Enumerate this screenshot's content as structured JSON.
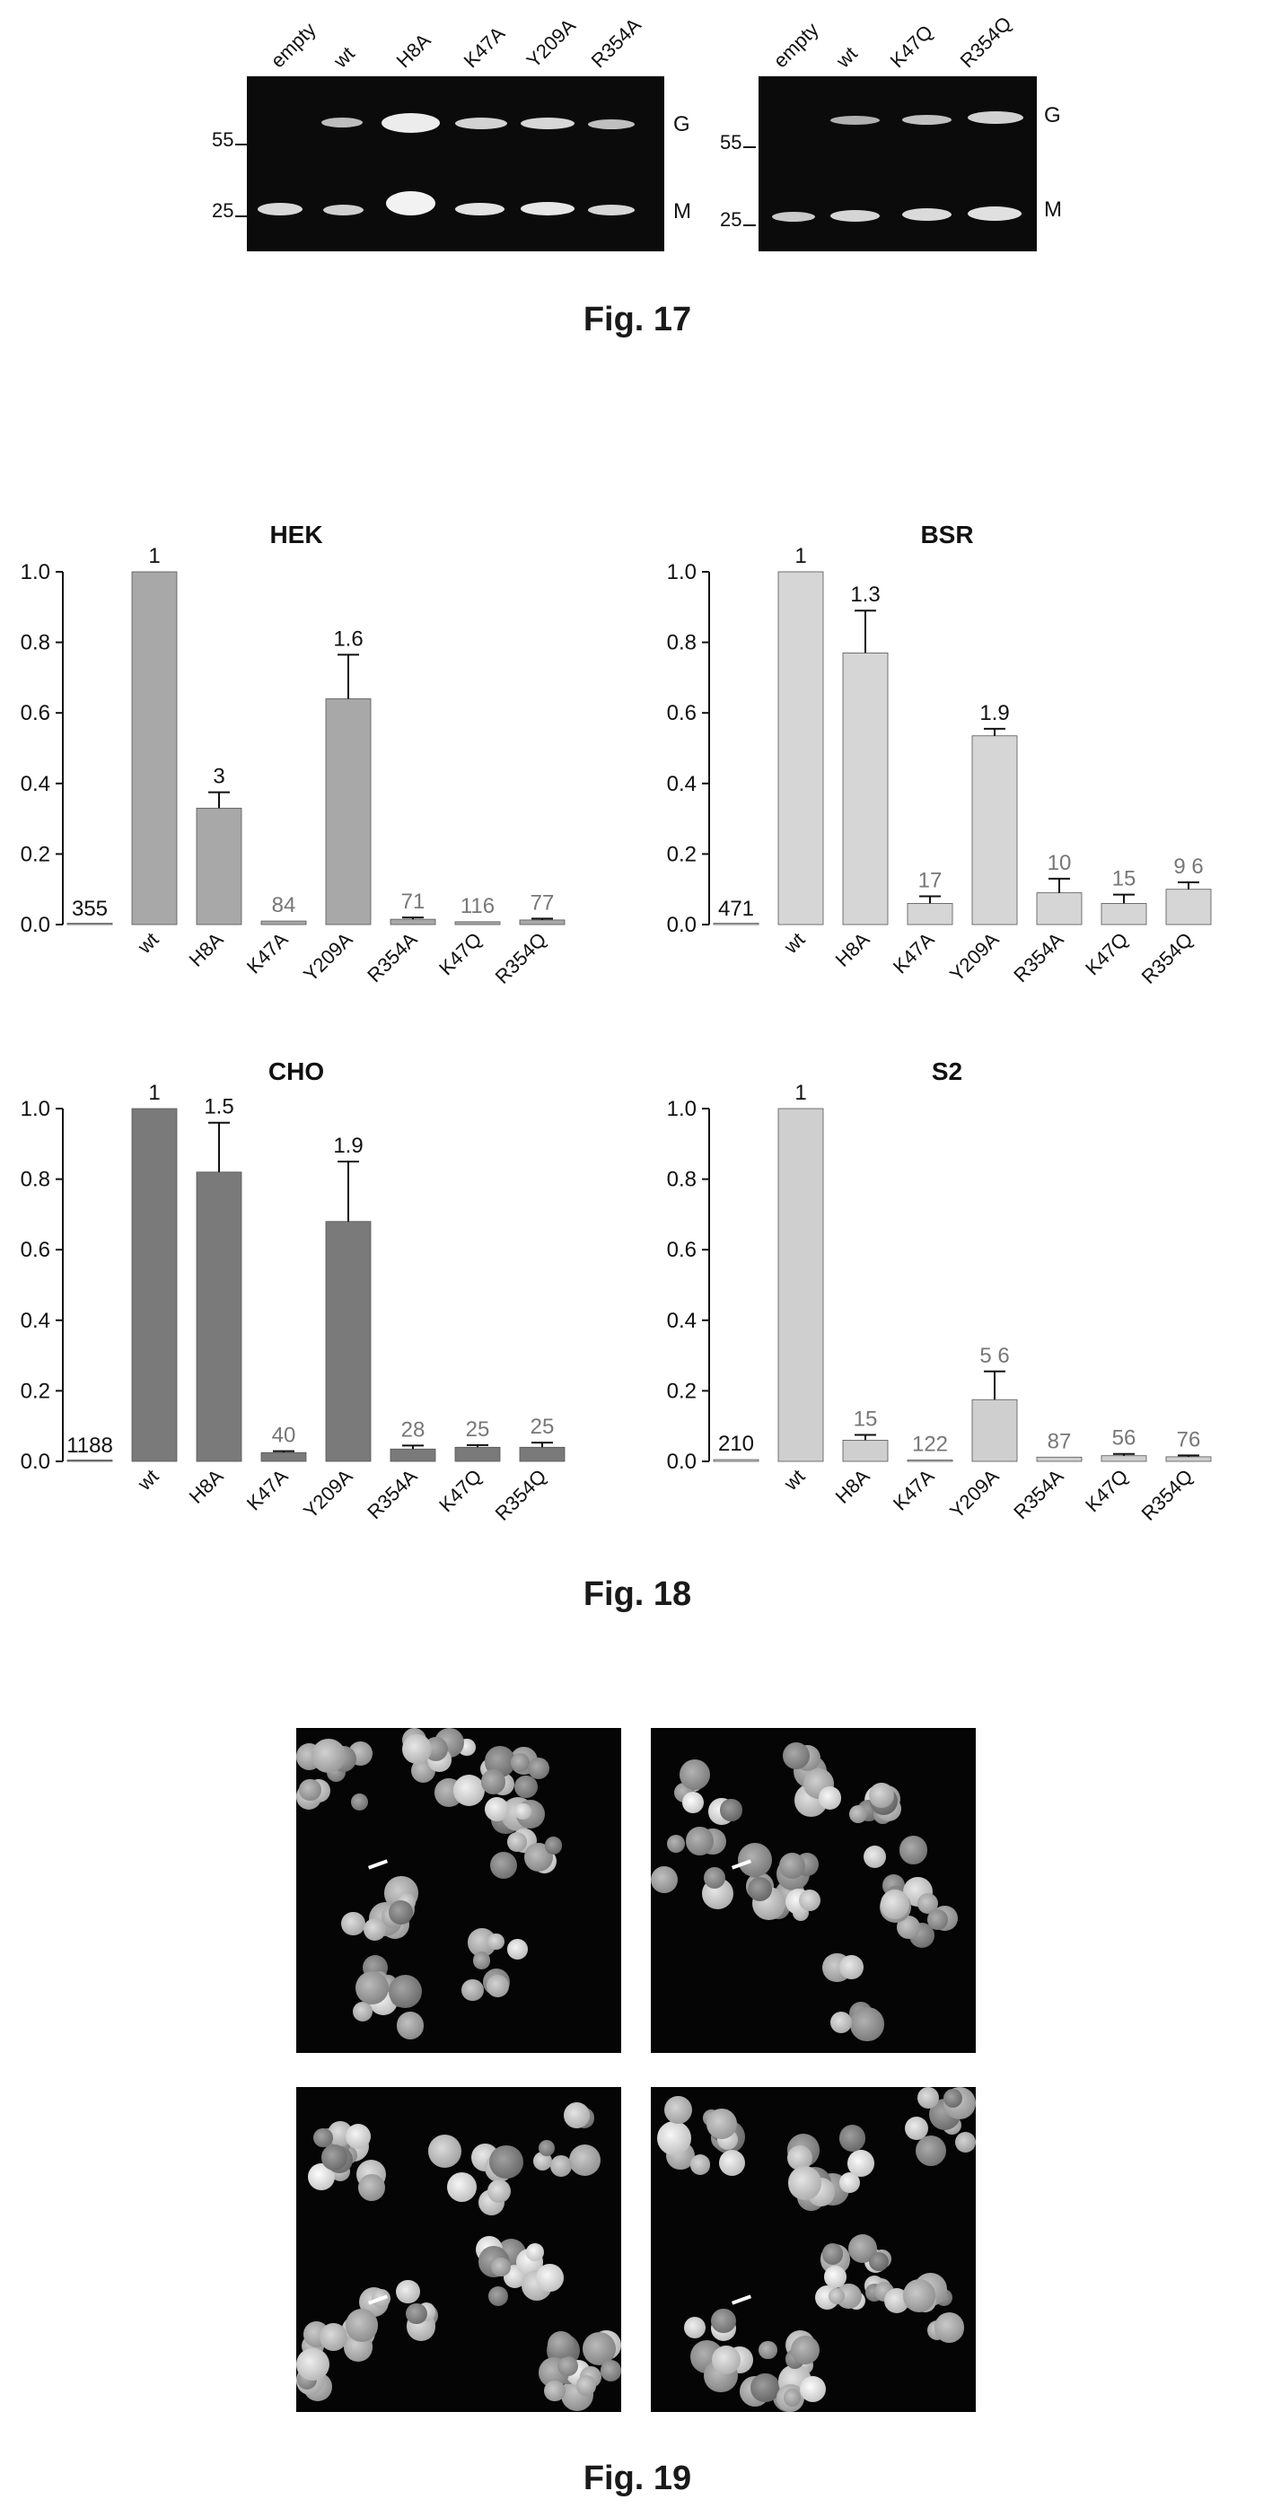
{
  "fig17": {
    "caption": "Fig. 17",
    "gel_left": {
      "lanes": [
        "empty",
        "wt",
        "H8A",
        "K47A",
        "Y209A",
        "R354A"
      ],
      "markers": [
        "55",
        "25"
      ],
      "band_labels": [
        "G",
        "M"
      ]
    },
    "gel_right": {
      "lanes": [
        "empty",
        "wt",
        "K47Q",
        "R354Q"
      ],
      "markers": [
        "55",
        "25"
      ],
      "band_labels": [
        "G",
        "M"
      ]
    }
  },
  "fig18": {
    "caption": "Fig. 18"
  },
  "fig19": {
    "caption": "Fig. 19"
  },
  "chart_data": [
    {
      "type": "bar",
      "title": "HEK",
      "categories": [
        "",
        "wt",
        "H8A",
        "K47A",
        "Y209A",
        "R354A",
        "K47Q",
        "R354Q"
      ],
      "values": [
        0.0,
        1.0,
        0.33,
        0.01,
        0.64,
        0.015,
        0.008,
        0.013
      ],
      "errors": [
        0.0,
        0.0,
        0.045,
        0.0,
        0.125,
        0.005,
        0.0,
        0.004
      ],
      "annotations": [
        "355",
        "1",
        "3",
        "84",
        "1.6",
        "71",
        "116",
        "77"
      ],
      "yticks": [
        "0.0",
        "0.2",
        "0.4",
        "0.6",
        "0.8",
        "1.0"
      ],
      "ylim": [
        0,
        1.0
      ],
      "color": "#a8a8a8"
    },
    {
      "type": "bar",
      "title": "BSR",
      "categories": [
        "",
        "wt",
        "H8A",
        "K47A",
        "Y209A",
        "R354A",
        "K47Q",
        "R354Q"
      ],
      "values": [
        0.0,
        1.0,
        0.77,
        0.06,
        0.535,
        0.09,
        0.06,
        0.1
      ],
      "errors": [
        0.0,
        0.0,
        0.12,
        0.02,
        0.02,
        0.04,
        0.025,
        0.02
      ],
      "annotations": [
        "471",
        "1",
        "1.3",
        "17",
        "1.9",
        "10",
        "15",
        "9 6"
      ],
      "yticks": [
        "0.0",
        "0.2",
        "0.4",
        "0.6",
        "0.8",
        "1.0"
      ],
      "ylim": [
        0,
        1.0
      ],
      "color": "#d6d6d6"
    },
    {
      "type": "bar",
      "title": "CHO",
      "categories": [
        "",
        "wt",
        "H8A",
        "K47A",
        "Y209A",
        "R354A",
        "K47Q",
        "R354Q"
      ],
      "values": [
        0.0,
        1.0,
        0.82,
        0.025,
        0.68,
        0.035,
        0.04,
        0.04
      ],
      "errors": [
        0.0,
        0.0,
        0.14,
        0.004,
        0.17,
        0.01,
        0.006,
        0.013
      ],
      "annotations": [
        "1188",
        "1",
        "1.5",
        "40",
        "1.9",
        "28",
        "25",
        "25"
      ],
      "yticks": [
        "0.0",
        "0.2",
        "0.4",
        "0.6",
        "0.8",
        "1.0"
      ],
      "ylim": [
        0,
        1.0
      ],
      "color": "#7a7a7a"
    },
    {
      "type": "bar",
      "title": "S2",
      "categories": [
        "",
        "wt",
        "H8A",
        "K47A",
        "Y209A",
        "R354A",
        "K47Q",
        "R354Q"
      ],
      "values": [
        0.005,
        1.0,
        0.06,
        0.004,
        0.175,
        0.012,
        0.016,
        0.013
      ],
      "errors": [
        0.0,
        0.0,
        0.015,
        0.0,
        0.08,
        0.0,
        0.005,
        0.004
      ],
      "annotations": [
        "210",
        "1",
        "15",
        "122",
        "5 6",
        "87",
        "56",
        "76"
      ],
      "yticks": [
        "0.0",
        "0.2",
        "0.4",
        "0.6",
        "0.8",
        "1.0"
      ],
      "ylim": [
        0,
        1.0
      ],
      "color": "#cfcfcf"
    }
  ]
}
